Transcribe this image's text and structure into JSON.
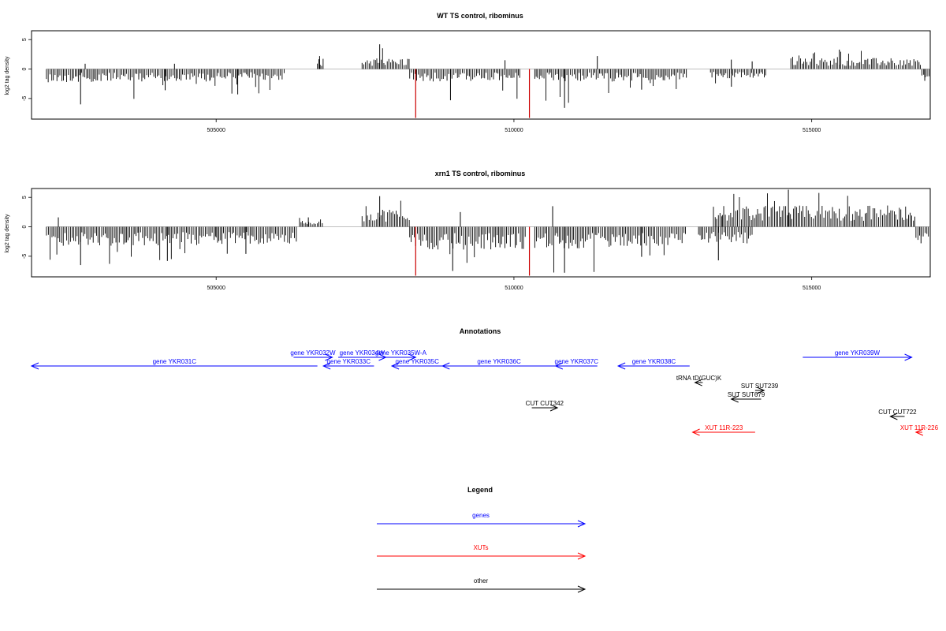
{
  "chart_data": [
    {
      "type": "bar",
      "title": "WT TS control, ribominus",
      "ylabel": "log2 tag density",
      "xlabel": "",
      "xlim": [
        501900,
        516990
      ],
      "ylim": [
        -8.5,
        6.5
      ],
      "x_ticks": [
        505000,
        510000,
        515000
      ],
      "y_ticks": [
        -5,
        0,
        5
      ],
      "grid": false,
      "baseline": 0,
      "highlight_color": "#cc0000",
      "highlights": [
        {
          "x": 508350,
          "y": -8.3
        },
        {
          "x": 510260,
          "y": -8.3
        }
      ],
      "segments": [
        {
          "x0": 502150,
          "x1": 503700,
          "sign": -1,
          "typ": 1.8,
          "peak": -6.0,
          "positive_peaks": [
            {
              "x": 502800,
              "y": 0.9
            }
          ]
        },
        {
          "x0": 503700,
          "x1": 504900,
          "sign": -1,
          "typ": 1.7,
          "peak": -3.6,
          "positive_peaks": [
            {
              "x": 504300,
              "y": 0.9
            }
          ]
        },
        {
          "x0": 504900,
          "x1": 506150,
          "sign": -1,
          "typ": 1.5,
          "peak": -4.3,
          "positive_peaks": []
        },
        {
          "x0": 506700,
          "x1": 506800,
          "sign": 1,
          "typ": 1.5,
          "peak": 2.2,
          "positive_peaks": []
        },
        {
          "x0": 507450,
          "x1": 508250,
          "sign": 1,
          "typ": 1.5,
          "peak": 4.2,
          "positive_peaks": []
        },
        {
          "x0": 508250,
          "x1": 510100,
          "sign": -1,
          "typ": 1.7,
          "peak": -5.3,
          "positive_peaks": [
            {
              "x": 509850,
              "y": 1.5
            }
          ]
        },
        {
          "x0": 510350,
          "x1": 511700,
          "sign": -1,
          "typ": 1.7,
          "peak": -6.6,
          "positive_peaks": [
            {
              "x": 511400,
              "y": 2.2
            }
          ]
        },
        {
          "x0": 511700,
          "x1": 512900,
          "sign": -1,
          "typ": 1.6,
          "peak": -3.5,
          "positive_peaks": []
        },
        {
          "x0": 513300,
          "x1": 514250,
          "sign": -1,
          "typ": 1.3,
          "peak": -3.0,
          "positive_peaks": [
            {
              "x": 513650,
              "y": 1.6
            },
            {
              "x": 514000,
              "y": 1.3
            }
          ]
        },
        {
          "x0": 514650,
          "x1": 516850,
          "sign": 1,
          "typ": 1.5,
          "peak": 3.3,
          "positive_peaks": []
        },
        {
          "x0": 516850,
          "x1": 516980,
          "sign": -1,
          "typ": 1.2,
          "peak": -2.0,
          "positive_peaks": []
        }
      ]
    },
    {
      "type": "bar",
      "title": "xrn1 TS control, ribominus",
      "ylabel": "log2 tag density",
      "xlabel": "",
      "xlim": [
        501900,
        516990
      ],
      "ylim": [
        -8.5,
        6.5
      ],
      "x_ticks": [
        505000,
        510000,
        515000
      ],
      "y_ticks": [
        -5,
        0,
        5
      ],
      "grid": false,
      "baseline": 0,
      "highlight_color": "#cc0000",
      "highlights": [
        {
          "x": 508350,
          "y": -8.3
        },
        {
          "x": 510260,
          "y": -8.3
        }
      ],
      "segments": [
        {
          "x0": 502150,
          "x1": 503700,
          "sign": -1,
          "typ": 2.6,
          "peak": -6.5,
          "positive_peaks": [
            {
              "x": 502350,
              "y": 1.6
            }
          ]
        },
        {
          "x0": 503700,
          "x1": 505000,
          "sign": -1,
          "typ": 2.6,
          "peak": -5.8,
          "positive_peaks": []
        },
        {
          "x0": 505000,
          "x1": 506350,
          "sign": -1,
          "typ": 2.4,
          "peak": -4.6,
          "positive_peaks": []
        },
        {
          "x0": 506400,
          "x1": 506800,
          "sign": 1,
          "typ": 1.0,
          "peak": 1.6,
          "positive_peaks": []
        },
        {
          "x0": 507450,
          "x1": 508250,
          "sign": 1,
          "typ": 2.5,
          "peak": 5.2,
          "positive_peaks": []
        },
        {
          "x0": 508250,
          "x1": 510200,
          "sign": -1,
          "typ": 3.1,
          "peak": -7.5,
          "positive_peaks": [
            {
              "x": 509100,
              "y": 2.5
            }
          ]
        },
        {
          "x0": 510350,
          "x1": 511700,
          "sign": -1,
          "typ": 3.0,
          "peak": -7.8,
          "positive_peaks": [
            {
              "x": 510650,
              "y": 3.5
            }
          ]
        },
        {
          "x0": 511700,
          "x1": 512900,
          "sign": -1,
          "typ": 2.6,
          "peak": -5.1,
          "positive_peaks": []
        },
        {
          "x0": 513100,
          "x1": 514000,
          "sign": -1,
          "typ": 2.3,
          "peak": -5.7,
          "positive_peaks": [
            {
              "x": 513500,
              "y": 2.0
            }
          ]
        },
        {
          "x0": 513350,
          "x1": 516750,
          "sign": 1,
          "typ": 2.9,
          "peak": 6.3,
          "positive_peaks": []
        },
        {
          "x0": 516750,
          "x1": 516980,
          "sign": -1,
          "typ": 1.6,
          "peak": -2.8,
          "positive_peaks": []
        }
      ]
    }
  ],
  "annotations": {
    "title": "Annotations",
    "features": [
      {
        "label": "gene YKR031C",
        "x0": 501900,
        "x1": 506700,
        "strand": "-",
        "color": "#0000ff",
        "row": 1,
        "show_label": true
      },
      {
        "label": "gene YKR032W",
        "x0": 506300,
        "x1": 506950,
        "strand": "+",
        "color": "#0000ff",
        "row": 0,
        "show_label": true
      },
      {
        "label": "gene YKR033C",
        "x0": 506800,
        "x1": 507650,
        "strand": "-",
        "color": "#0000ff",
        "row": 1,
        "show_label": true
      },
      {
        "label": "gene YKR034W",
        "x0": 507050,
        "x1": 507850,
        "strand": "+",
        "color": "#0000ff",
        "row": 0,
        "show_label": true
      },
      {
        "label": "gene YKR035W-A",
        "x0": 507850,
        "x1": 508350,
        "strand": "+",
        "color": "#0000ff",
        "row": 0,
        "show_label": true
      },
      {
        "label": "gene YKR035C",
        "x0": 507950,
        "x1": 508800,
        "strand": "-",
        "color": "#0000ff",
        "row": 1,
        "show_label": true
      },
      {
        "label": "gene YKR036C",
        "x0": 508800,
        "x1": 510700,
        "strand": "-",
        "color": "#0000ff",
        "row": 1,
        "show_label": true
      },
      {
        "label": "gene YKR037C",
        "x0": 510700,
        "x1": 511400,
        "strand": "-",
        "color": "#0000ff",
        "row": 1,
        "show_label": true
      },
      {
        "label": "gene YKR038C",
        "x0": 511750,
        "x1": 512950,
        "strand": "-",
        "color": "#0000ff",
        "row": 1,
        "show_label": true
      },
      {
        "label": "gene YKR039W",
        "x0": 514850,
        "x1": 516680,
        "strand": "+",
        "color": "#0000ff",
        "row": 0,
        "show_label": true
      },
      {
        "label": "tRNA tD(GUC)K",
        "x0": 513040,
        "x1": 513170,
        "strand": "-",
        "color": "#000000",
        "row": 2,
        "show_label": true
      },
      {
        "label": "SUT SUT239",
        "x0": 514050,
        "x1": 514200,
        "strand": "+",
        "color": "#000000",
        "row": 3,
        "show_label": true
      },
      {
        "label": "SUT SUT679",
        "x0": 513650,
        "x1": 514150,
        "strand": "-",
        "color": "#000000",
        "row": 4,
        "show_label": true
      },
      {
        "label": "CUT CUT342",
        "x0": 510300,
        "x1": 510730,
        "strand": "+",
        "color": "#000000",
        "row": 5,
        "show_label": true
      },
      {
        "label": "CUT CUT722",
        "x0": 516320,
        "x1": 516560,
        "strand": "-",
        "color": "#000000",
        "row": 6,
        "show_label": true
      },
      {
        "label": "XUT 11R-223",
        "x0": 513000,
        "x1": 514050,
        "strand": "-",
        "color": "#ff0000",
        "row": 7,
        "show_label": true
      },
      {
        "label": "XUT 11R-226",
        "x0": 516750,
        "x1": 517700,
        "strand": "-",
        "color": "#ff0000",
        "row": 7,
        "show_label": true
      }
    ]
  },
  "legend": {
    "title": "Legend",
    "items": [
      {
        "label": "genes",
        "color": "#0000ff"
      },
      {
        "label": "XUTs",
        "color": "#ff0000"
      },
      {
        "label": "other",
        "color": "#000000"
      }
    ]
  }
}
